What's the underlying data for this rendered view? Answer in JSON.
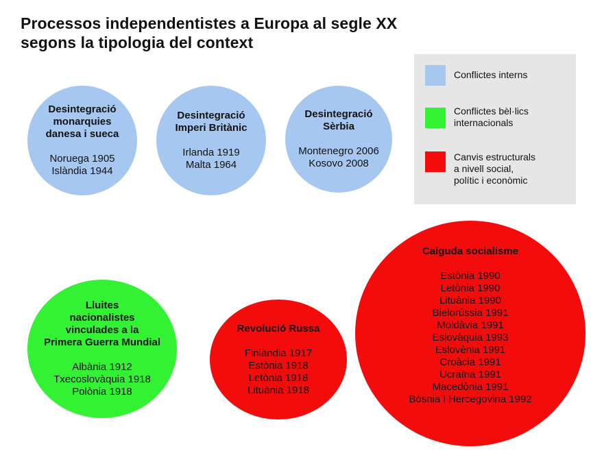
{
  "title": {
    "line1": "Processos independentistes a Europa al segle XX",
    "line2": "segons la tipologia del context"
  },
  "colors": {
    "internal": "#a6c8f0",
    "war": "#33f233",
    "structural": "#f40c0c",
    "legend_bg": "#e6e6e6"
  },
  "legend": [
    {
      "lines": [
        "Conflictes interns"
      ],
      "color": "#a6c8f0"
    },
    {
      "lines": [
        "Conflictes bèl·lics",
        "internacionals"
      ],
      "color": "#33f233"
    },
    {
      "lines": [
        "Canvis estructurals",
        "a nivell social,",
        "polític i econòmic"
      ],
      "color": "#f40c0c"
    }
  ],
  "bubbles": [
    {
      "title": [
        "Desintegració",
        "monarquies",
        "danesa i sueca"
      ],
      "items": [
        "Noruega 1905",
        "Islàndia 1944"
      ],
      "type": "internal"
    },
    {
      "title": [
        "Desintegració",
        "Imperi Britànic"
      ],
      "items": [
        "Irlanda 1919",
        "Malta 1964"
      ],
      "type": "internal"
    },
    {
      "title": [
        "Desintegració",
        "Sèrbia"
      ],
      "items": [
        "Montenegro 2006",
        "Kosovo 2008"
      ],
      "type": "internal"
    },
    {
      "title": [
        "Lluites",
        "nacionalistes",
        "vinculades a la",
        "Primera Guerra Mundial"
      ],
      "items": [
        "Albània 1912",
        "Txecoslovàquia 1918",
        "Polònia 1918"
      ],
      "type": "war"
    },
    {
      "title": [
        "Revolució Russa"
      ],
      "items": [
        "Finlàndia 1917",
        "Estònia 1918",
        "Letònia 1918",
        "Lituània 1918"
      ],
      "type": "structural"
    },
    {
      "title": [
        "Caiguda socialisme"
      ],
      "items": [
        "Estònia 1990",
        "Letònia 1990",
        "Lituània 1990",
        "Bielorússia 1991",
        "Moldàvia 1991",
        "Eslovàquia 1993",
        "Eslovènia 1991",
        "Croàcia 1991",
        "Ucraïna 1991",
        "Macedònia 1991",
        "Bòsnia i Hercegovina 1992"
      ],
      "type": "structural"
    }
  ]
}
